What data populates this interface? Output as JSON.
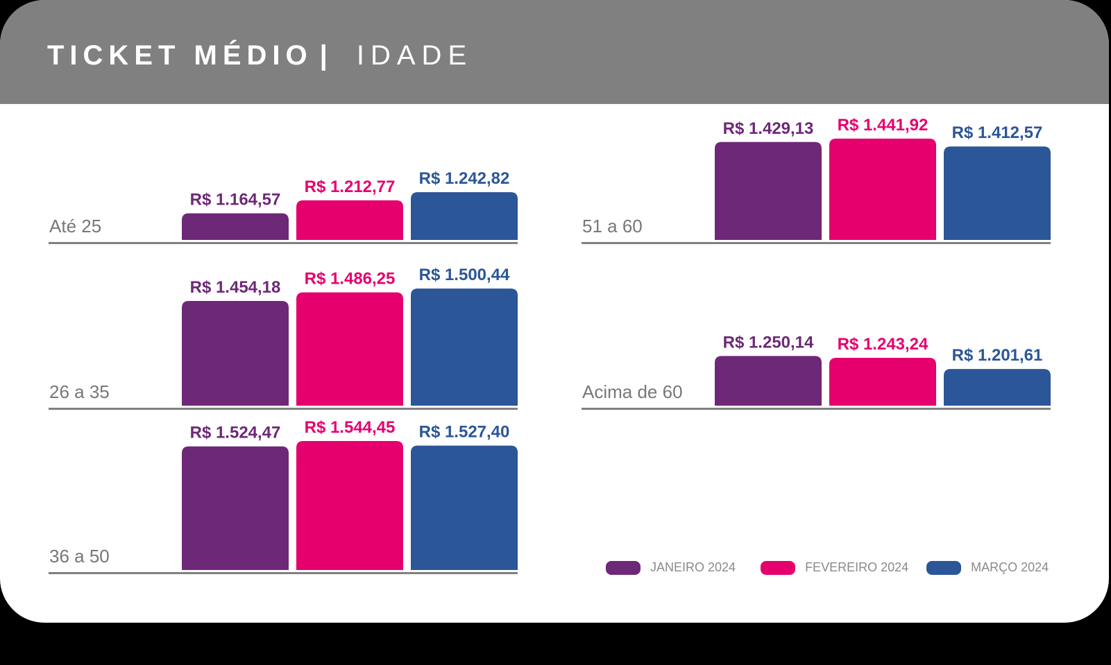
{
  "header": {
    "title": "TICKET MÉDIO",
    "separator": "|",
    "subtitle": "IDADE"
  },
  "colors": {
    "header_bg": "#808080",
    "jan": "#6E2878",
    "fev": "#E5006E",
    "mar": "#2B5697",
    "baseline": "#808080",
    "category_text": "#777777",
    "legend_text": "#8a8a8a"
  },
  "legend": [
    {
      "label": "JANEIRO 2024",
      "color": "#6E2878"
    },
    {
      "label": "FEVEREIRO 2024",
      "color": "#E5006E"
    },
    {
      "label": "MARÇO 2024",
      "color": "#2B5697"
    }
  ],
  "chart_data": {
    "type": "bar",
    "title": "TICKET MÉDIO | IDADE",
    "series_names": [
      "JANEIRO 2024",
      "FEVEREIRO 2024",
      "MARÇO 2024"
    ],
    "groups": [
      {
        "category": "Até 25",
        "values": [
          1164.57,
          1212.77,
          1242.82
        ],
        "labels": [
          "R$ 1.164,57",
          "R$ 1.212,77",
          "R$ 1.242,82"
        ]
      },
      {
        "category": "26 a 35",
        "values": [
          1454.18,
          1486.25,
          1500.44
        ],
        "labels": [
          "R$ 1.454,18",
          "R$ 1.486,25",
          "R$ 1.500,44"
        ]
      },
      {
        "category": "36 a 50",
        "values": [
          1524.47,
          1544.45,
          1527.4
        ],
        "labels": [
          "R$ 1.524,47",
          "R$ 1.544,45",
          "R$ 1.527,40"
        ]
      },
      {
        "category": "51 a 60",
        "values": [
          1429.13,
          1441.92,
          1412.57
        ],
        "labels": [
          "R$ 1.429,13",
          "R$ 1.441,92",
          "R$ 1.412,57"
        ]
      },
      {
        "category": "Acima de 60",
        "values": [
          1250.14,
          1243.24,
          1201.61
        ],
        "labels": [
          "R$ 1.250,14",
          "R$ 1.243,24",
          "R$ 1.201,61"
        ]
      }
    ],
    "grid": false,
    "legend_position": "bottom-right"
  }
}
